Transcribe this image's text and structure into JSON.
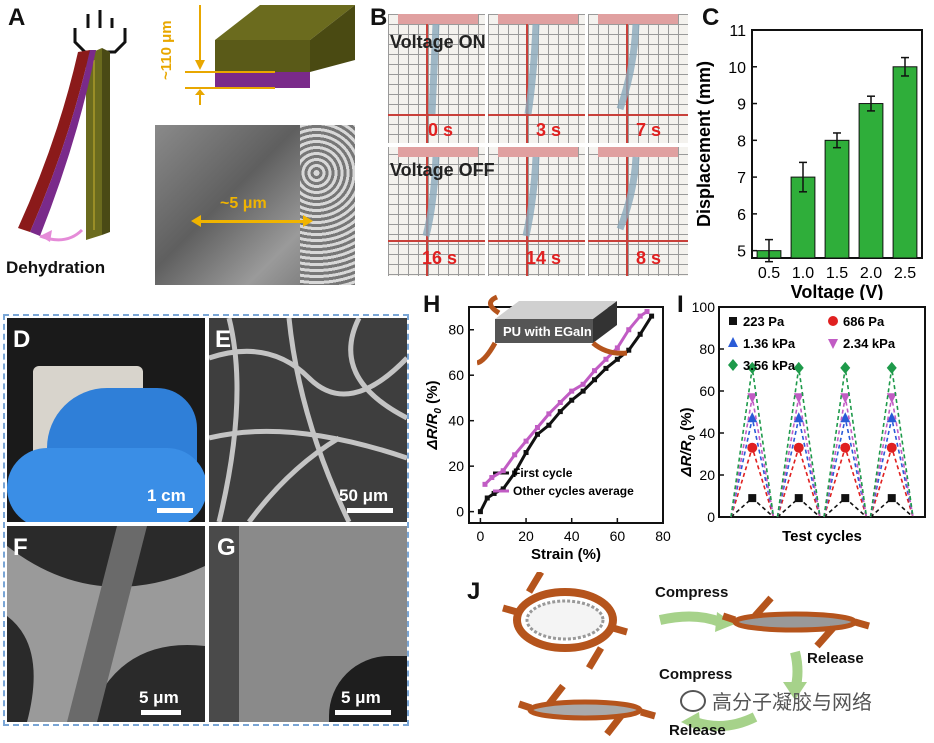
{
  "panels": {
    "A": {
      "letter": "A",
      "thickness_label": "~110 μm",
      "sem_label": "~5 μm",
      "caption": "Dehydration"
    },
    "B": {
      "letter": "B",
      "on_label": "Voltage ON",
      "off_label": "Voltage OFF",
      "times_on": [
        "0 s",
        "3 s",
        "7 s"
      ],
      "times_off": [
        "16 s",
        "14 s",
        "8 s"
      ]
    },
    "C": {
      "letter": "C"
    },
    "D": {
      "letter": "D",
      "scale": "1 cm"
    },
    "E": {
      "letter": "E",
      "scale": "50 μm"
    },
    "F": {
      "letter": "F",
      "scale": "5 μm"
    },
    "G": {
      "letter": "G",
      "scale": "5 μm"
    },
    "H": {
      "letter": "H",
      "inset_label": "PU with EGaIn"
    },
    "I": {
      "letter": "I"
    },
    "J": {
      "letter": "J",
      "compress1": "Compress",
      "release1": "Release",
      "compress2": "Compress",
      "release2": "Release"
    }
  },
  "watermark": "高分子凝胶与网络",
  "colors": {
    "green_bar": "#2fae3a",
    "dark_red": "#8b1a1a",
    "purple": "#7a2a8a",
    "olive": "#6b6b1e",
    "orange_brown": "#b5541c",
    "magenta": "#c15cc4",
    "dashed_border": "#7aa6d6"
  },
  "chart_data": [
    {
      "id": "C",
      "type": "bar",
      "xlabel": "Voltage (V)",
      "ylabel": "Displacement (mm)",
      "categories": [
        "0.5",
        "1.0",
        "1.5",
        "2.0",
        "2.5"
      ],
      "values": [
        5.0,
        7.0,
        8.0,
        9.0,
        10.0
      ],
      "errors": [
        0.3,
        0.4,
        0.2,
        0.2,
        0.25
      ],
      "ylim": [
        4.8,
        11
      ],
      "yticks": [
        "5",
        "6",
        "7",
        "8",
        "9",
        "10",
        "11"
      ]
    },
    {
      "id": "H",
      "type": "line",
      "xlabel": "Strain (%)",
      "ylabel": "ΔR/R",
      "ylabel_sub": "0",
      "ylabel_unit": "(%)",
      "xlim": [
        -5,
        80
      ],
      "ylim": [
        -5,
        90
      ],
      "xticks": [
        "0",
        "20",
        "40",
        "60",
        "80"
      ],
      "yticks": [
        "0",
        "20",
        "40",
        "60",
        "80"
      ],
      "series": [
        {
          "name": "First cycle",
          "color": "#111111",
          "x": [
            0,
            3,
            6,
            10,
            15,
            20,
            25,
            30,
            35,
            40,
            45,
            50,
            55,
            60,
            65,
            70,
            75
          ],
          "y": [
            0,
            6,
            8,
            10,
            17,
            26,
            34,
            38,
            44,
            49,
            53,
            58,
            63,
            67,
            71,
            78,
            86
          ]
        },
        {
          "name": "Other cycles average",
          "color": "#c15cc4",
          "x": [
            2,
            5,
            10,
            15,
            20,
            25,
            30,
            35,
            40,
            45,
            50,
            55,
            60,
            65,
            70,
            73
          ],
          "y": [
            12,
            15,
            18,
            25,
            31,
            37,
            43,
            48,
            53,
            56,
            62,
            67,
            72,
            80,
            86,
            88
          ]
        }
      ]
    },
    {
      "id": "I",
      "type": "line",
      "xlabel": "Test cycles",
      "ylabel": "ΔR/R",
      "ylabel_sub": "0",
      "ylabel_unit": "(%)",
      "ylim": [
        0,
        100
      ],
      "yticks": [
        "0",
        "20",
        "40",
        "60",
        "80",
        "100"
      ],
      "cycles": 4,
      "series": [
        {
          "name": "223 Pa",
          "color": "#111111",
          "marker": "square",
          "peak": 9
        },
        {
          "name": "686 Pa",
          "color": "#e02020",
          "marker": "circle",
          "peak": 33
        },
        {
          "name": "1.36 kPa",
          "color": "#2a5bd7",
          "marker": "triangle-up",
          "peak": 47
        },
        {
          "name": "2.34 kPa",
          "color": "#c15cc4",
          "marker": "triangle-down",
          "peak": 57
        },
        {
          "name": "3.56 kPa",
          "color": "#1e9a4a",
          "marker": "diamond",
          "peak": 71
        }
      ]
    }
  ]
}
